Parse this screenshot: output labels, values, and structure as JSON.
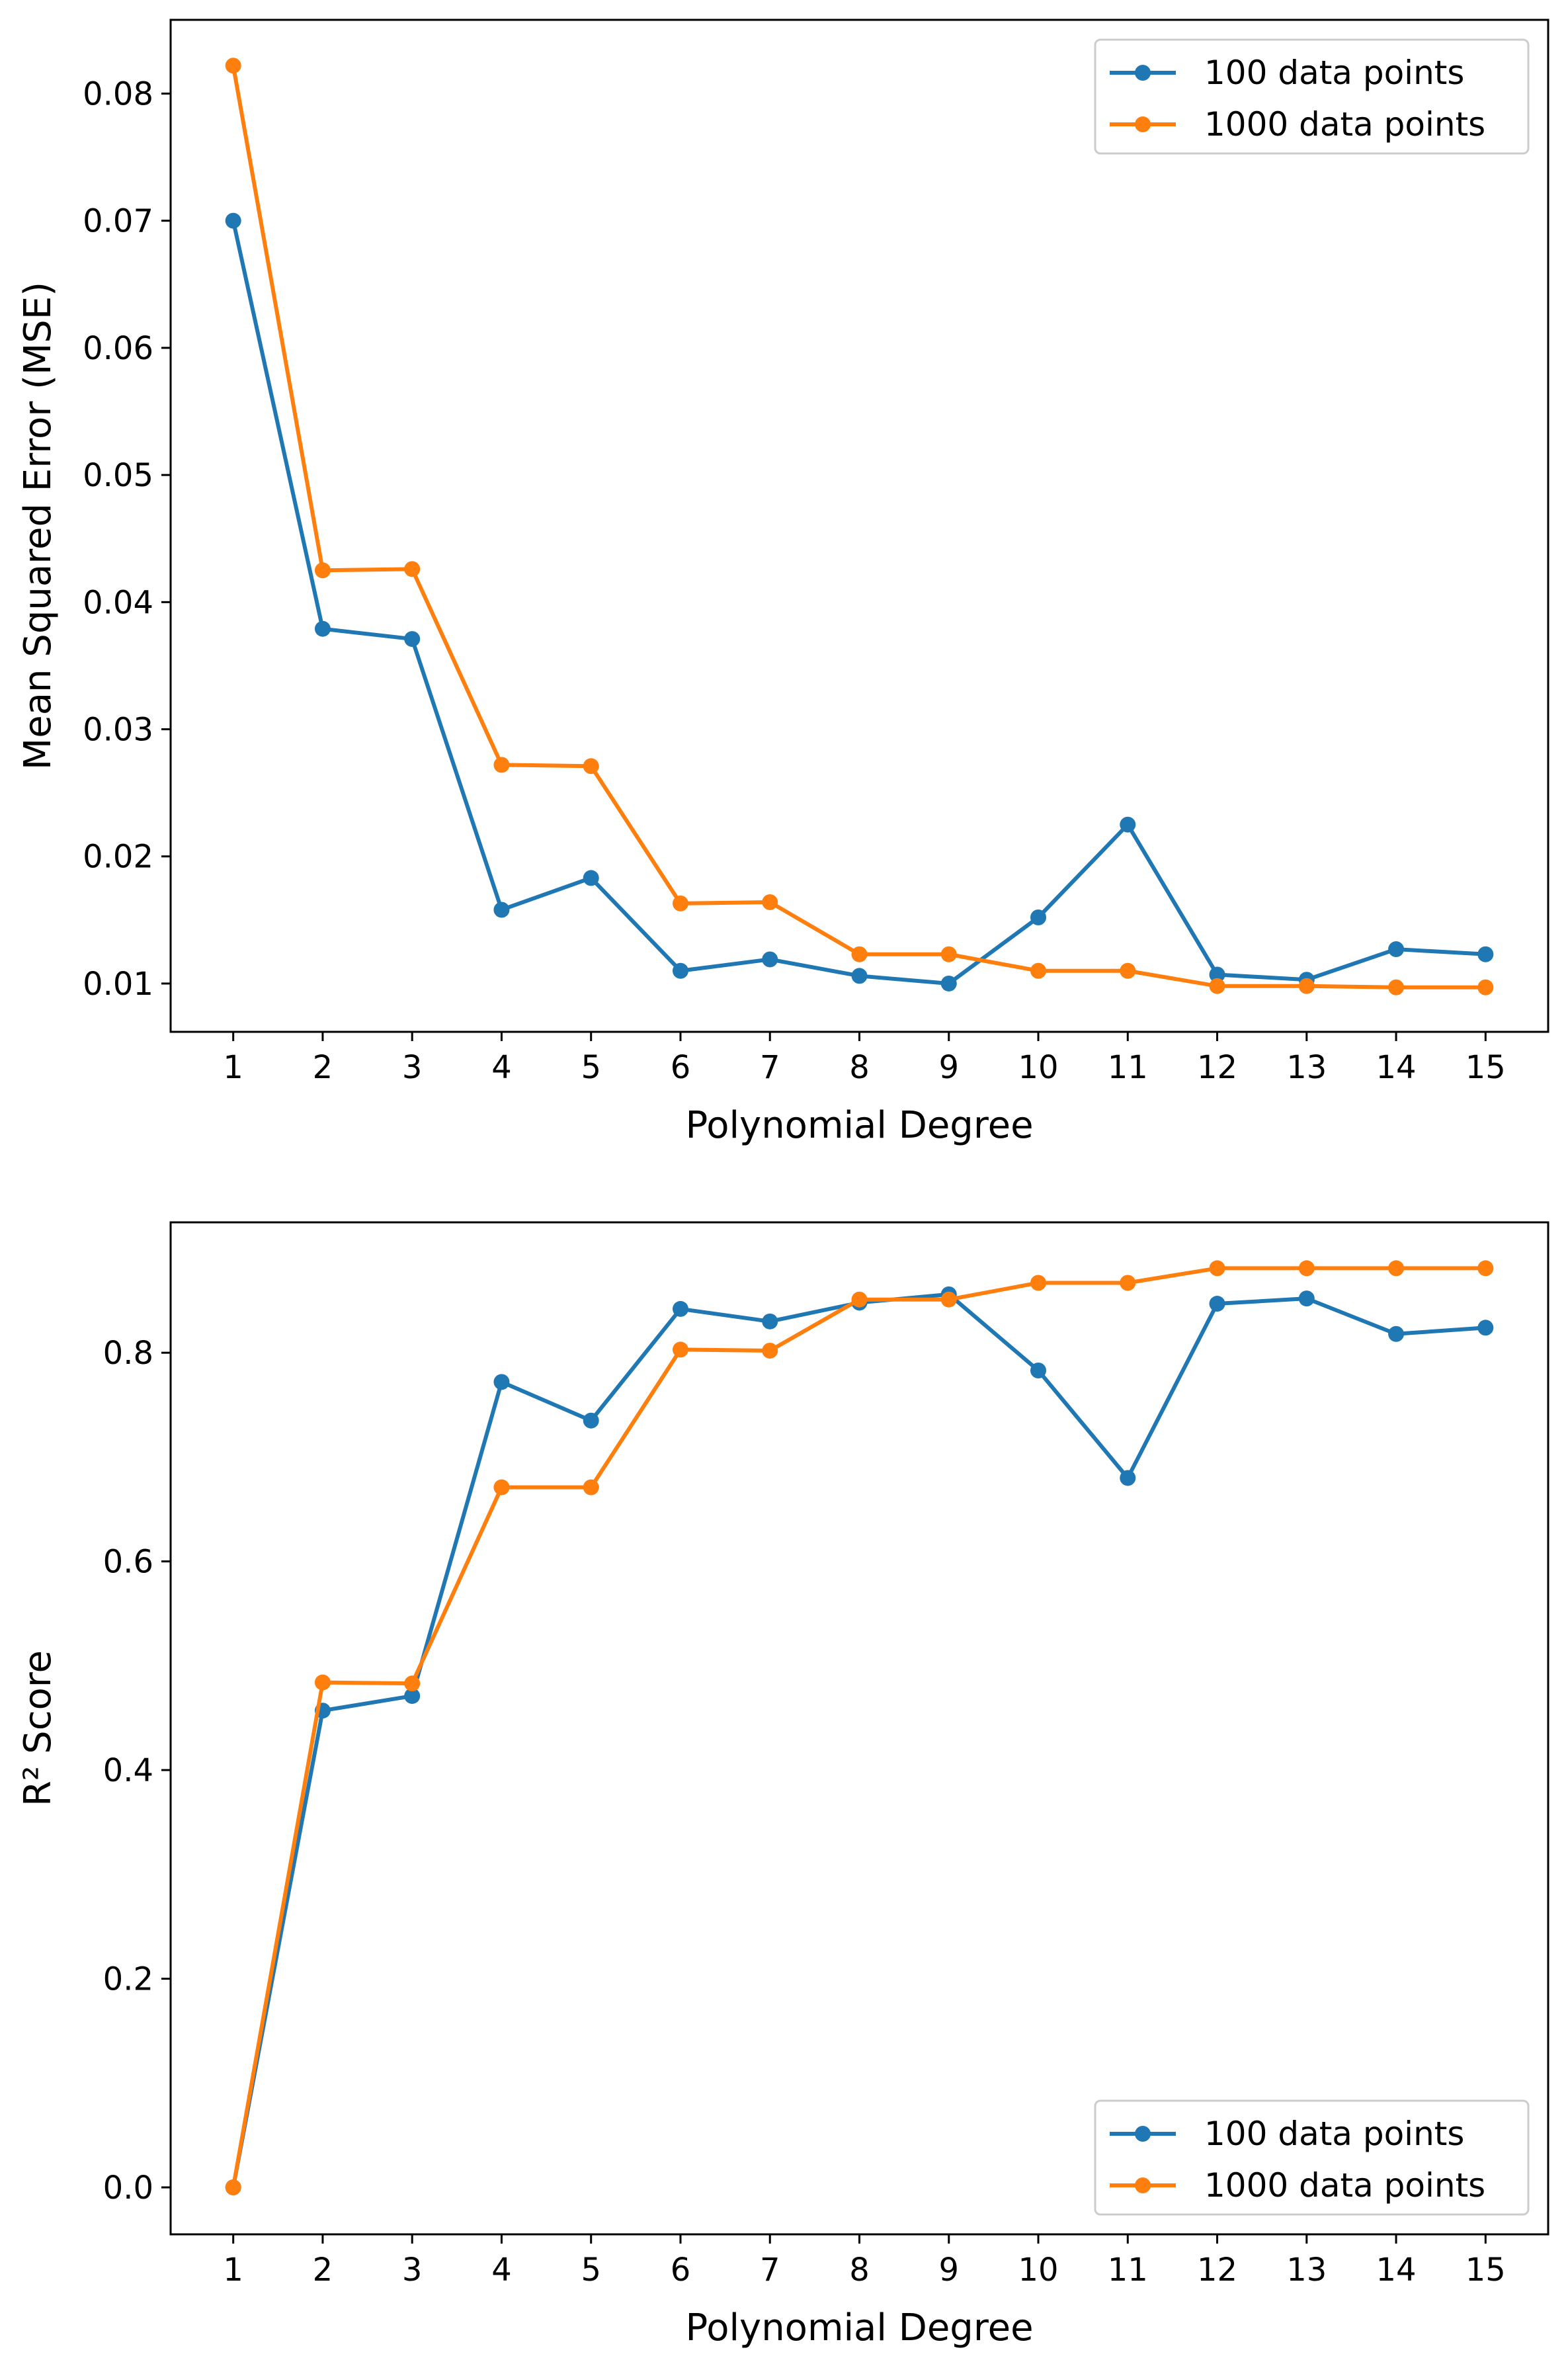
{
  "colors": {
    "series_100": "#1f77b4",
    "series_1000": "#ff7f0e"
  },
  "chart_data": [
    {
      "type": "line",
      "xlabel": "Polynomial Degree",
      "ylabel": "Mean Squared Error (MSE)",
      "x": [
        1,
        2,
        3,
        4,
        5,
        6,
        7,
        8,
        9,
        10,
        11,
        12,
        13,
        14,
        15
      ],
      "xticks": [
        "1",
        "2",
        "3",
        "4",
        "5",
        "6",
        "7",
        "8",
        "9",
        "10",
        "11",
        "12",
        "13",
        "14",
        "15"
      ],
      "xlim": [
        0.3,
        15.7
      ],
      "ylim": [
        0.0062,
        0.0858
      ],
      "yticks": [
        "0.01",
        "0.02",
        "0.03",
        "0.04",
        "0.05",
        "0.06",
        "0.07",
        "0.08"
      ],
      "grid": false,
      "legend": "top-right",
      "series": [
        {
          "name": "100 data points",
          "color": "#1f77b4",
          "values": [
            0.07,
            0.0379,
            0.0371,
            0.0158,
            0.0183,
            0.011,
            0.0119,
            0.0106,
            0.01,
            0.0152,
            0.0225,
            0.0107,
            0.0103,
            0.0127,
            0.0123
          ]
        },
        {
          "name": "1000 data points",
          "color": "#ff7f0e",
          "values": [
            0.0822,
            0.0425,
            0.0426,
            0.0272,
            0.0271,
            0.0163,
            0.0164,
            0.0123,
            0.0123,
            0.011,
            0.011,
            0.0098,
            0.0098,
            0.0097,
            0.0097
          ]
        }
      ]
    },
    {
      "type": "line",
      "xlabel": "Polynomial Degree",
      "ylabel": "R² Score",
      "x": [
        1,
        2,
        3,
        4,
        5,
        6,
        7,
        8,
        9,
        10,
        11,
        12,
        13,
        14,
        15
      ],
      "xticks": [
        "1",
        "2",
        "3",
        "4",
        "5",
        "6",
        "7",
        "8",
        "9",
        "10",
        "11",
        "12",
        "13",
        "14",
        "15"
      ],
      "xlim": [
        0.3,
        15.7
      ],
      "ylim": [
        -0.045,
        0.925
      ],
      "yticks": [
        "0.0",
        "0.2",
        "0.4",
        "0.6",
        "0.8"
      ],
      "grid": false,
      "legend": "bottom-right",
      "series": [
        {
          "name": "100 data points",
          "color": "#1f77b4",
          "values": [
            0.0,
            0.457,
            0.471,
            0.772,
            0.735,
            0.842,
            0.83,
            0.848,
            0.856,
            0.783,
            0.68,
            0.847,
            0.852,
            0.818,
            0.824
          ]
        },
        {
          "name": "1000 data points",
          "color": "#ff7f0e",
          "values": [
            0.0,
            0.484,
            0.483,
            0.671,
            0.671,
            0.803,
            0.802,
            0.851,
            0.851,
            0.867,
            0.867,
            0.881,
            0.881,
            0.881,
            0.881
          ]
        }
      ]
    }
  ]
}
